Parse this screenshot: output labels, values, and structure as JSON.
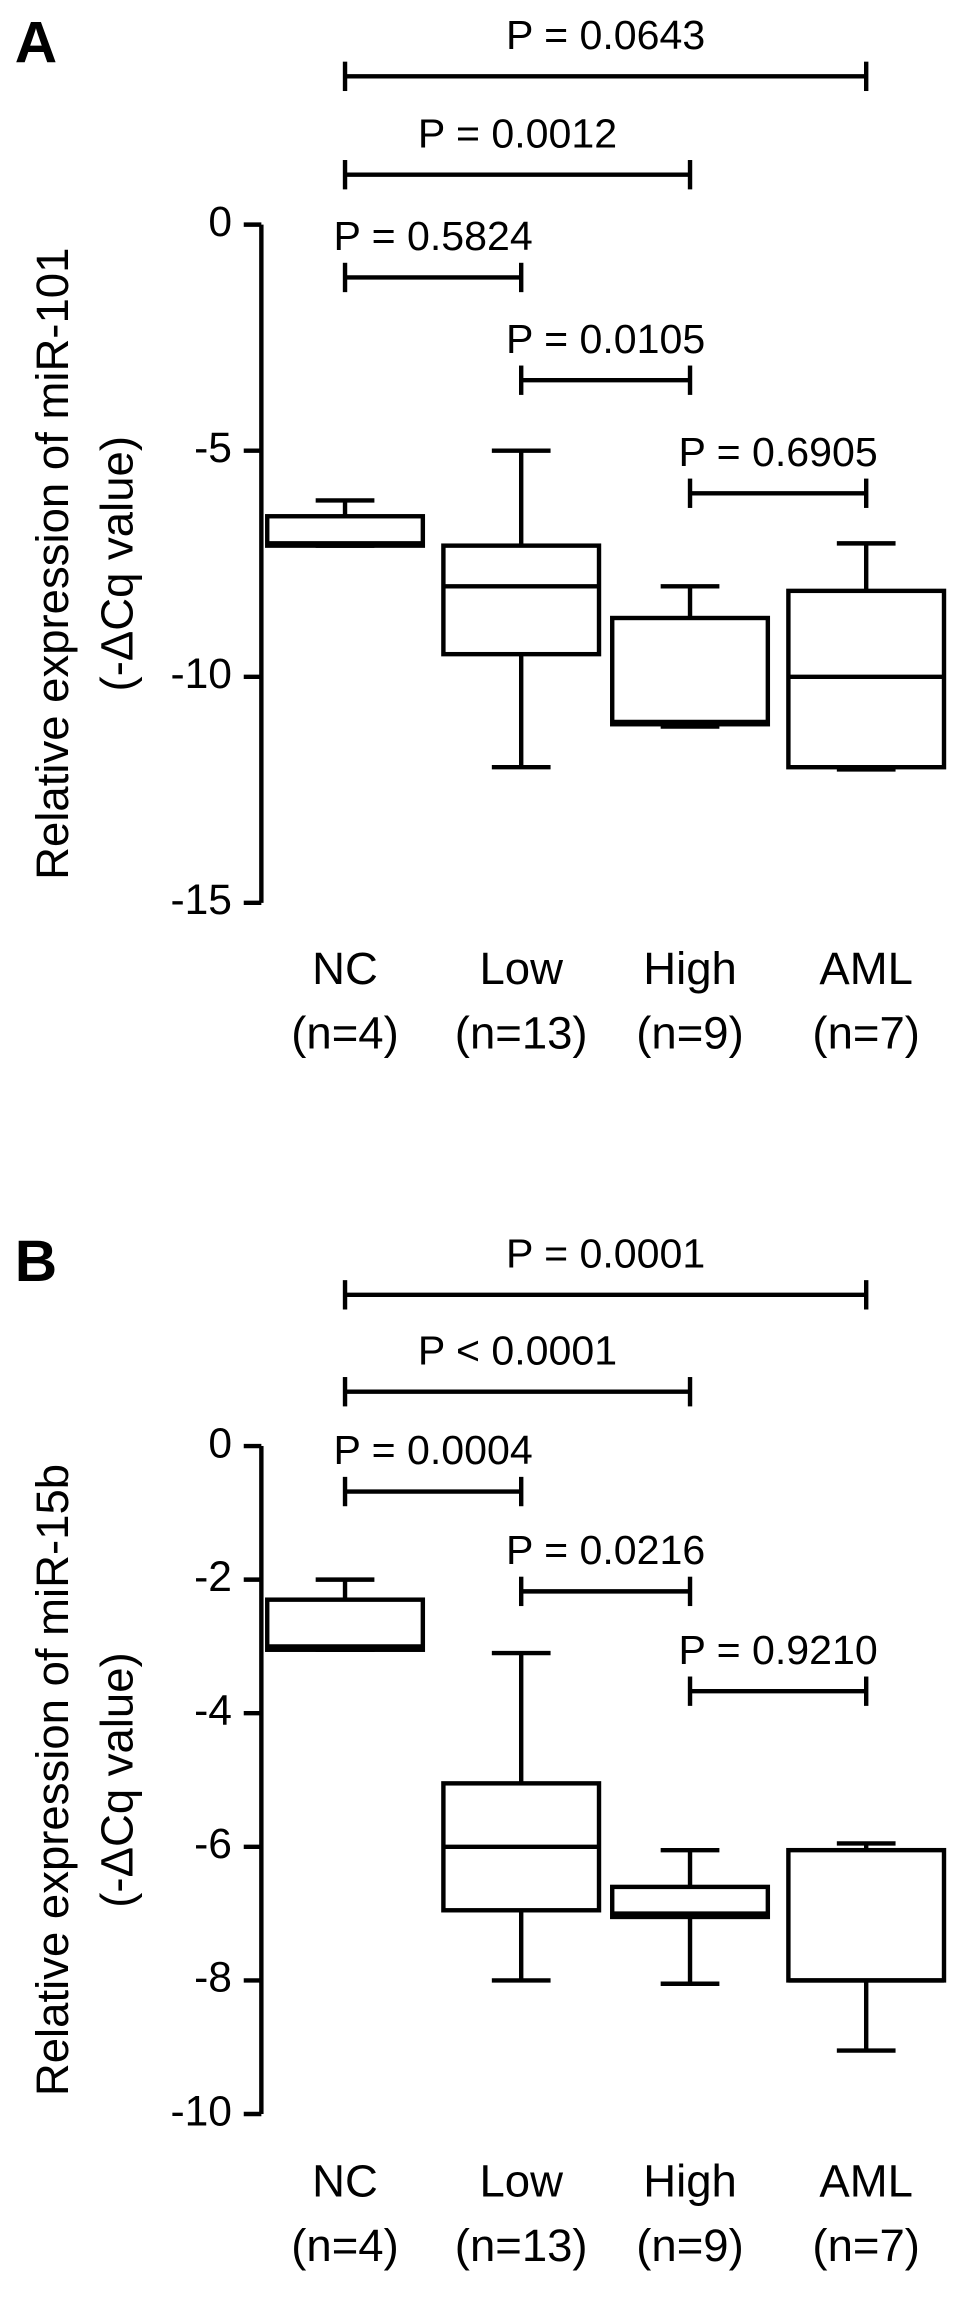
{
  "chart_data": [
    {
      "type": "box",
      "panel_label": "A",
      "ylabel": [
        "Relative expression of miR-101",
        "(-ΔCq value)"
      ],
      "categories": [
        "NC",
        "Low",
        "High",
        "AML"
      ],
      "n_labels": [
        "(n=4)",
        "(n=13)",
        "(n=9)",
        "(n=7)"
      ],
      "min": [
        -7.1,
        -12.0,
        -11.1,
        -12.05
      ],
      "q1": [
        -7.1,
        -9.5,
        -11.05,
        -12.0
      ],
      "median": [
        -7.05,
        -8.0,
        -11.0,
        -10.0
      ],
      "q3": [
        -6.45,
        -7.1,
        -8.7,
        -8.1
      ],
      "max": [
        -6.1,
        -5.0,
        -8.0,
        -7.05
      ],
      "ylim": [
        -15,
        0
      ],
      "yticks": [
        0,
        -5,
        -10,
        -15
      ],
      "color": "#000000",
      "annotations": [
        {
          "text": "P = 0.0643",
          "from": "NC",
          "to": "AML"
        },
        {
          "text": "P = 0.0012",
          "from": "NC",
          "to": "High"
        },
        {
          "text": "P = 0.5824",
          "from": "NC",
          "to": "Low"
        },
        {
          "text": "P = 0.0105",
          "from": "Low",
          "to": "High"
        },
        {
          "text": "P = 0.6905",
          "from": "High",
          "to": "AML"
        }
      ]
    },
    {
      "type": "box",
      "panel_label": "B",
      "ylabel": [
        "Relative expression of miR-15b",
        "(-ΔCq value)"
      ],
      "categories": [
        "NC",
        "Low",
        "High",
        "AML"
      ],
      "n_labels": [
        "(n=4)",
        "(n=13)",
        "(n=9)",
        "(n=7)"
      ],
      "min": [
        -3.05,
        -8.0,
        -8.05,
        -9.05
      ],
      "q1": [
        -3.05,
        -6.95,
        -7.05,
        -8.0
      ],
      "median": [
        -3.0,
        -6.0,
        -7.0,
        -8.0
      ],
      "q3": [
        -2.3,
        -5.05,
        -6.6,
        -6.05
      ],
      "max": [
        -2.0,
        -3.1,
        -6.05,
        -5.95
      ],
      "ylim": [
        -10,
        0
      ],
      "yticks": [
        0,
        -2,
        -4,
        -6,
        -8,
        -10
      ],
      "color": "#000000",
      "annotations": [
        {
          "text": "P = 0.0001",
          "from": "NC",
          "to": "AML"
        },
        {
          "text": "P < 0.0001",
          "from": "NC",
          "to": "High"
        },
        {
          "text": "P = 0.0004",
          "from": "NC",
          "to": "Low"
        },
        {
          "text": "P = 0.0216",
          "from": "Low",
          "to": "High"
        },
        {
          "text": "P = 0.9210",
          "from": "High",
          "to": "AML"
        }
      ]
    }
  ]
}
